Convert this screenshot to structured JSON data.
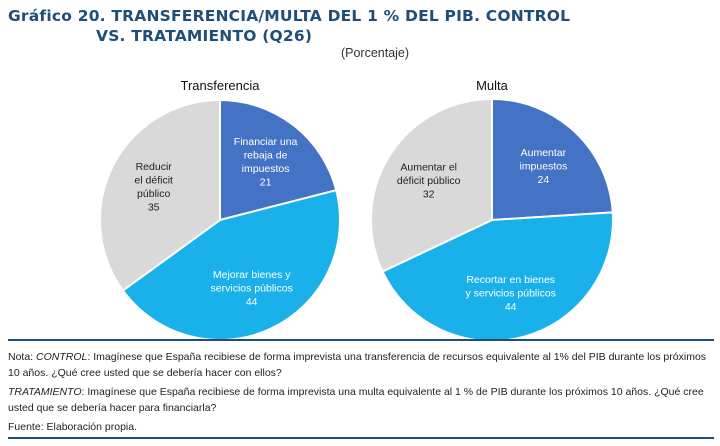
{
  "header": {
    "title_line1": "Gráfico 20. TRANSFERENCIA/MULTA DEL 1 % DEL PIB. CONTROL",
    "title_line2": "VS. TRATAMIENTO (Q26)",
    "subtitle": "(Porcentaje)"
  },
  "colors": {
    "dark_blue": "#4472c4",
    "light_blue": "#1ab0ea",
    "gray": "#d9d9d9",
    "title": "#1f4e79"
  },
  "chart_data": [
    {
      "type": "pie",
      "title": "Transferencia",
      "slices": [
        {
          "label_lines": [
            "Financiar una",
            "rebaja de",
            "impuestos"
          ],
          "value": 21,
          "color": "#4472c4",
          "text_color": "#ffffff"
        },
        {
          "label_lines": [
            "Mejorar bienes y",
            "servicios públicos"
          ],
          "value": 44,
          "color": "#1ab0ea",
          "text_color": "#ffffff"
        },
        {
          "label_lines": [
            "Reducir",
            "el déficit",
            "público"
          ],
          "value": 35,
          "color": "#d9d9d9",
          "text_color": "#222222"
        }
      ]
    },
    {
      "type": "pie",
      "title": "Multa",
      "slices": [
        {
          "label_lines": [
            "Aumentar",
            "impuestos"
          ],
          "value": 24,
          "color": "#4472c4",
          "text_color": "#ffffff"
        },
        {
          "label_lines": [
            "Recortar en bienes",
            "y servicios públicos"
          ],
          "value": 44,
          "color": "#1ab0ea",
          "text_color": "#ffffff"
        },
        {
          "label_lines": [
            "Aumentar el",
            "déficit público"
          ],
          "value": 32,
          "color": "#d9d9d9",
          "text_color": "#222222"
        }
      ]
    }
  ],
  "notes": {
    "nota_prefix": "Nota: ",
    "control_label": "CONTROL",
    "control_text": ": Imagínese que España recibiese de forma imprevista una transferencia de recursos equivalente al 1% del PIB durante los próximos 10 años. ¿Qué cree usted que se debería hacer con ellos?",
    "tratamiento_label": "TRATAMIENTO",
    "tratamiento_text": ": Imagínese que España recibiese de forma imprevista una multa equivalente al 1 % de PIB durante los próximos 10 años. ¿Qué cree usted que se debería hacer para financiarla?",
    "fuente": "Fuente: Elaboración propia."
  }
}
